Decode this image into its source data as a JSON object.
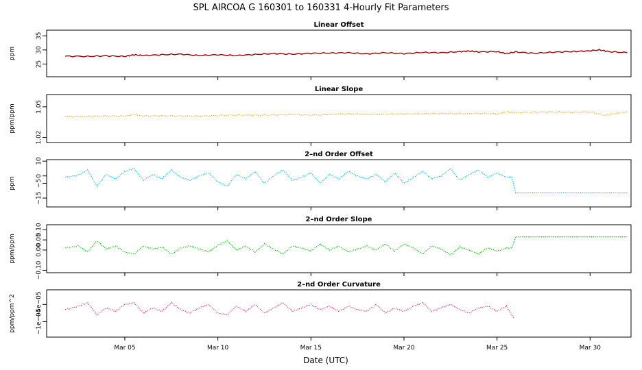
{
  "title": "SPL   AIRCOA G   160301 to 160331   4-Hourly Fit Parameters",
  "xlabel": "Date (UTC)",
  "x_axis": {
    "day_range": [
      0.8,
      32.2
    ],
    "ticks": [
      {
        "day": 5,
        "label": "Mar 05"
      },
      {
        "day": 10,
        "label": "Mar 10"
      },
      {
        "day": 15,
        "label": "Mar 15"
      },
      {
        "day": 20,
        "label": "Mar 20"
      },
      {
        "day": 25,
        "label": "Mar 25"
      },
      {
        "day": 30,
        "label": "Mar 30"
      }
    ]
  },
  "chart_data": [
    {
      "type": "line",
      "title": "Linear Offset",
      "ylabel": "ppm",
      "ylim": [
        20.5,
        37
      ],
      "yticks": [
        25,
        30,
        35
      ],
      "ytick_labels": [
        "25",
        "30",
        "35"
      ],
      "color": "#990000",
      "style": "solid",
      "x": [
        1.8,
        3,
        4,
        5,
        5.5,
        6,
        7,
        8,
        9,
        10,
        11,
        12,
        13,
        14,
        15,
        16,
        17,
        18,
        19,
        20,
        21,
        22,
        23,
        23.5,
        24,
        25,
        25.5,
        26,
        27,
        28,
        29,
        29.8,
        30.5,
        31,
        32
      ],
      "y": [
        27.8,
        27.7,
        27.9,
        27.7,
        28.3,
        28.0,
        28.3,
        28.5,
        28.0,
        28.3,
        28.0,
        28.4,
        28.7,
        28.5,
        28.8,
        28.9,
        29.0,
        28.6,
        29.0,
        28.7,
        29.1,
        29.0,
        29.4,
        29.6,
        29.3,
        29.4,
        28.7,
        29.3,
        28.8,
        29.2,
        29.4,
        29.6,
        30.0,
        29.4,
        29.0
      ]
    },
    {
      "type": "line",
      "title": "Linear Slope",
      "ylabel": "ppm/ppm",
      "ylim": [
        1.015,
        1.062
      ],
      "yticks": [
        1.02,
        1.05
      ],
      "ytick_labels": [
        "1.02",
        "1.05"
      ],
      "color": "#ffa500",
      "style": "dotted",
      "x": [
        1.8,
        3,
        4,
        5,
        5.5,
        6,
        7,
        8,
        9,
        10,
        11,
        12,
        13,
        14,
        15,
        16,
        17,
        18,
        19,
        20,
        21,
        22,
        23,
        24,
        25,
        25.5,
        26,
        27,
        28,
        29,
        30,
        30.8,
        31.5,
        32
      ],
      "y": [
        1.0405,
        1.0405,
        1.041,
        1.0408,
        1.0425,
        1.041,
        1.0412,
        1.041,
        1.0408,
        1.0415,
        1.0418,
        1.0418,
        1.042,
        1.0425,
        1.0418,
        1.0425,
        1.043,
        1.0425,
        1.0428,
        1.043,
        1.0432,
        1.0435,
        1.0432,
        1.0435,
        1.043,
        1.045,
        1.0442,
        1.0448,
        1.045,
        1.0445,
        1.045,
        1.0415,
        1.044,
        1.045
      ]
    },
    {
      "type": "line",
      "title": "2–nd Order Offset",
      "ylabel": "ppm",
      "ylim": [
        -21,
        11
      ],
      "yticks": [
        -15,
        -5,
        0,
        10
      ],
      "ytick_labels": [
        "−15",
        "−5",
        "0",
        "10"
      ],
      "color": "#00bfff",
      "style": "dotted",
      "x": [
        1.8,
        2.5,
        3,
        3.5,
        4,
        4.5,
        5,
        5.5,
        6,
        6.5,
        7,
        7.5,
        8,
        8.5,
        9,
        9.5,
        10,
        10.5,
        11,
        11.5,
        12,
        12.5,
        13,
        13.5,
        14,
        14.5,
        15,
        15.5,
        16,
        16.5,
        17,
        17.5,
        18,
        18.5,
        19,
        19.5,
        20,
        20.5,
        21,
        21.5,
        22,
        22.5,
        23,
        23.5,
        24,
        24.5,
        25,
        25.5,
        25.8,
        26,
        27,
        28,
        29,
        30,
        31,
        32
      ],
      "y": [
        -1,
        0.5,
        4,
        -7,
        1,
        -2,
        3,
        5,
        -3,
        1,
        -2,
        4,
        -1,
        -3,
        0,
        2,
        -4,
        -7,
        1,
        -2,
        3,
        -5,
        0,
        4,
        -3,
        -1,
        2,
        -5,
        1,
        -2,
        3,
        0,
        -2,
        1,
        -4,
        2,
        -5,
        -1,
        3,
        -2,
        0,
        5,
        -3,
        1,
        4,
        -1,
        2,
        -1,
        -1,
        -11.5,
        -11.5,
        -11.5,
        -11.5,
        -11.5,
        -11.5,
        -11.5
      ]
    },
    {
      "type": "line",
      "title": "2–nd Order Slope",
      "ylabel": "ppm/ppm",
      "ylim": [
        -0.112,
        0.125
      ],
      "yticks": [
        -0.1,
        0,
        0.05,
        0.1
      ],
      "ytick_labels": [
        "−0.10",
        "0.00",
        "0.05",
        "0.10"
      ],
      "color": "#00cc00",
      "style": "dotted",
      "x": [
        1.8,
        2.5,
        3,
        3.5,
        4,
        4.5,
        5,
        5.5,
        6,
        6.5,
        7,
        7.5,
        8,
        8.5,
        9,
        9.5,
        10,
        10.5,
        11,
        11.5,
        12,
        12.5,
        13,
        13.5,
        14,
        14.5,
        15,
        15.5,
        16,
        16.5,
        17,
        17.5,
        18,
        18.5,
        19,
        19.5,
        20,
        20.5,
        21,
        21.5,
        22,
        22.5,
        23,
        23.5,
        24,
        24.5,
        25,
        25.5,
        25.8,
        26,
        27,
        28,
        29,
        30,
        31,
        32
      ],
      "y": [
        0.01,
        0.02,
        -0.01,
        0.045,
        0.005,
        0.02,
        -0.01,
        -0.02,
        0.02,
        0.005,
        0.015,
        -0.02,
        0.01,
        0.02,
        0.005,
        -0.01,
        0.025,
        0.045,
        0.0,
        0.02,
        -0.01,
        0.03,
        0.005,
        -0.02,
        0.02,
        0.01,
        -0.005,
        0.03,
        0.0,
        0.02,
        -0.01,
        0.005,
        0.02,
        0.0,
        0.03,
        -0.005,
        0.03,
        0.01,
        -0.02,
        0.02,
        0.005,
        -0.025,
        0.015,
        0.0,
        -0.02,
        0.01,
        -0.005,
        0.01,
        0.01,
        0.065,
        0.065,
        0.065,
        0.065,
        0.065,
        0.065,
        0.065
      ]
    },
    {
      "type": "line",
      "title": "2–nd Order Curvature",
      "ylabel": "ppm/ppm^2",
      "ylim": [
        -0.000145,
        -7.5e-06
      ],
      "yticks": [
        -0.0001,
        -5e-05
      ],
      "ytick_labels": [
        "−1e−04",
        "−5e−05"
      ],
      "color": "#ff3366",
      "style": "dotted",
      "x": [
        1.8,
        2.5,
        3,
        3.5,
        4,
        4.5,
        5,
        5.5,
        6,
        6.5,
        7,
        7.5,
        8,
        8.5,
        9,
        9.5,
        10,
        10.5,
        11,
        11.5,
        12,
        12.5,
        13,
        13.5,
        14,
        14.5,
        15,
        15.5,
        16,
        16.5,
        17,
        17.5,
        18,
        18.5,
        19,
        19.5,
        20,
        20.5,
        21,
        21.5,
        22,
        22.5,
        23,
        23.5,
        24,
        24.5,
        25,
        25.5,
        25.9
      ],
      "y": [
        -6.5e-05,
        -5.5e-05,
        -4.5e-05,
        -8e-05,
        -6e-05,
        -7e-05,
        -5e-05,
        -4.5e-05,
        -7.5e-05,
        -6e-05,
        -7e-05,
        -4.5e-05,
        -6.5e-05,
        -7.5e-05,
        -6e-05,
        -5e-05,
        -7.5e-05,
        -8e-05,
        -5.5e-05,
        -7e-05,
        -5e-05,
        -7.5e-05,
        -6e-05,
        -4.5e-05,
        -7e-05,
        -6e-05,
        -5e-05,
        -6.5e-05,
        -5.5e-05,
        -7e-05,
        -5.5e-05,
        -6.5e-05,
        -7e-05,
        -5e-05,
        -7.5e-05,
        -6e-05,
        -7e-05,
        -5.5e-05,
        -4.5e-05,
        -7e-05,
        -6e-05,
        -5e-05,
        -6.5e-05,
        -7.5e-05,
        -6e-05,
        -5.5e-05,
        -7e-05,
        -5.5e-05,
        -9e-05
      ]
    }
  ]
}
